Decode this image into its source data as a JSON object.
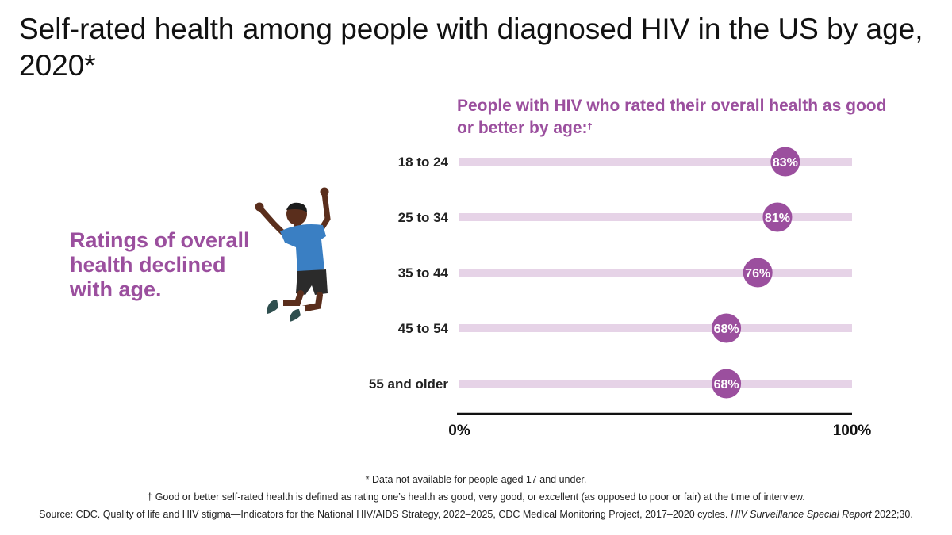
{
  "title": "Self-rated health among people with diagnosed HIV in the US by age, 2020*",
  "callout": "Ratings of overall health declined with age.",
  "subtitle": "People with HIV who rated their overall health as good or better by age:",
  "subtitle_mark": "†",
  "colors": {
    "accent": "#9b4f9e",
    "track": "#e6d3e7",
    "axis": "#111111"
  },
  "chart_data": {
    "type": "bar",
    "categories": [
      "18 to 24",
      "25 to 34",
      "35 to 44",
      "45 to 54",
      "55 and older"
    ],
    "values": [
      83,
      81,
      76,
      68,
      68
    ],
    "data_labels": [
      "83%",
      "81%",
      "76%",
      "68%",
      "68%"
    ],
    "xlim": [
      0,
      100
    ],
    "tick_labels": [
      "0%",
      "100%"
    ],
    "title": "People with HIV who rated their overall health as good or better by age:",
    "xlabel": "",
    "ylabel": ""
  },
  "footnotes": {
    "star": "* Data not available for people aged 17 and under.",
    "dagger": "† Good or better self-rated health is defined as rating one’s health as good, very good, or excellent (as opposed to poor or fair) at the time of interview.",
    "source_prefix": "Source: CDC. Quality of life and HIV stigma—Indicators for the National HIV/AIDS Strategy, 2022–2025, CDC Medical Monitoring Project, 2017–2020 cycles.",
    "source_italic": "HIV Surveillance Special Report",
    "source_suffix": "2022;30."
  }
}
